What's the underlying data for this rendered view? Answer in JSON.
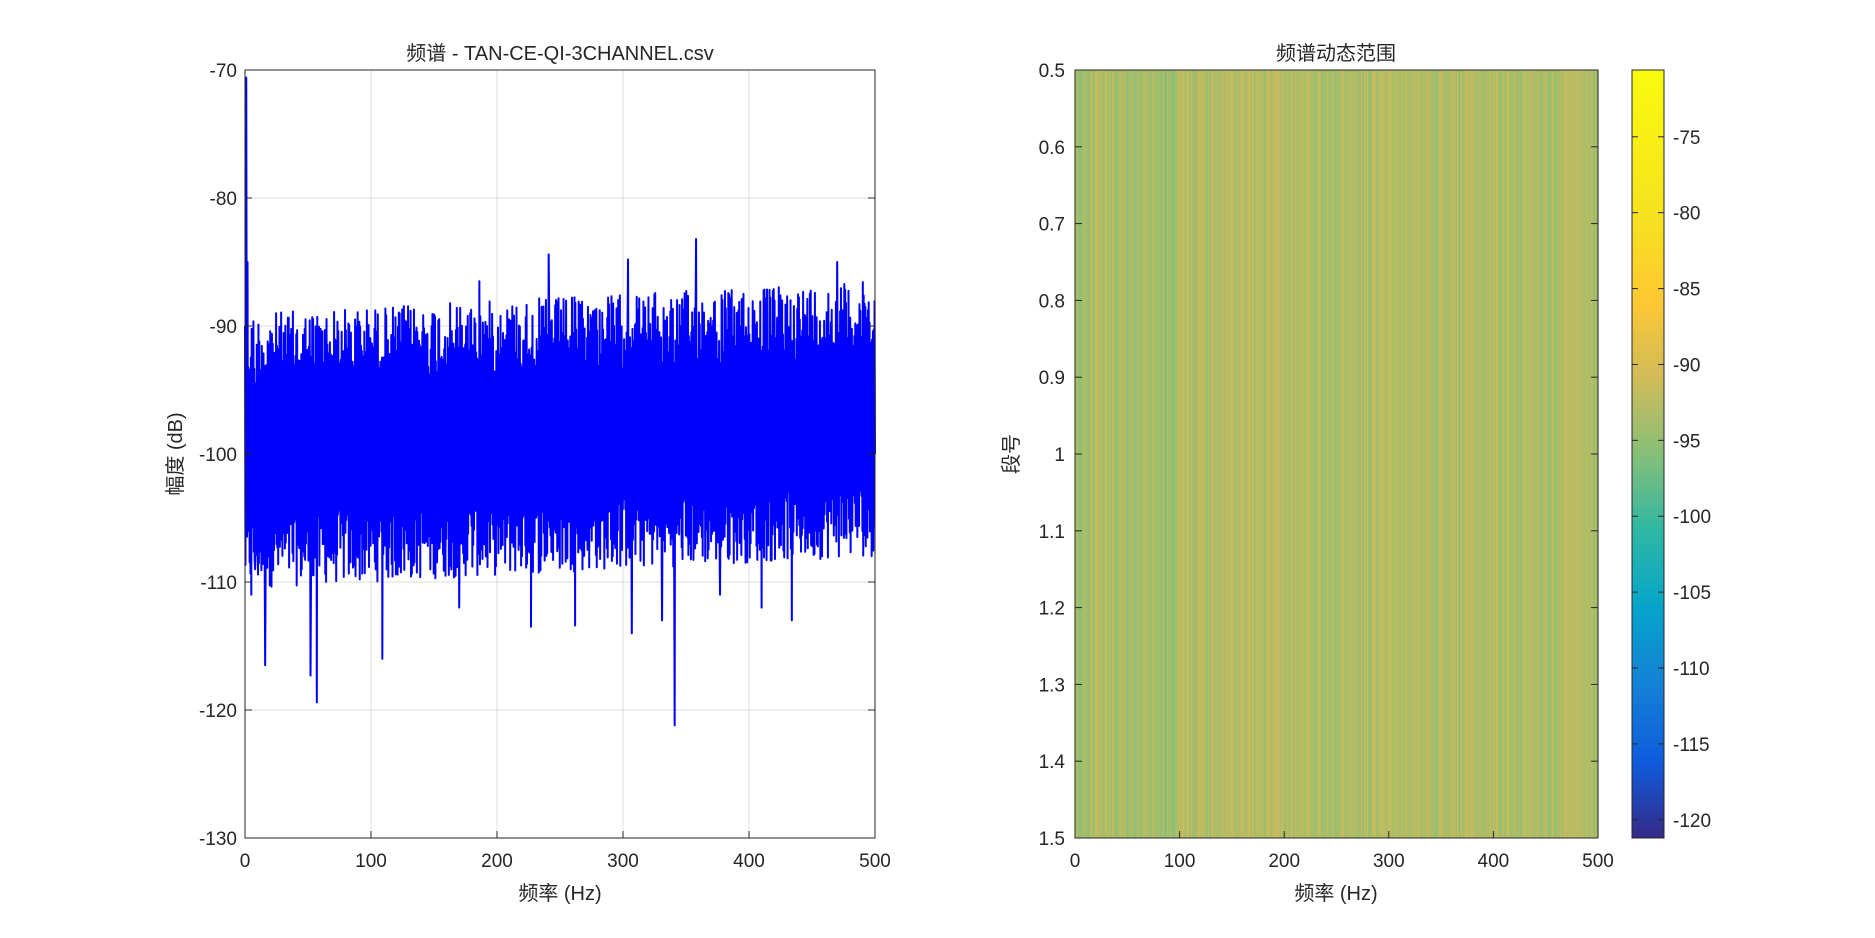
{
  "chart_data": [
    {
      "type": "line",
      "title": "频谱 - TAN-CE-QI-3CHANNEL.csv",
      "xlabel": "频率 (Hz)",
      "ylabel": "幅度 (dB)",
      "xlim": [
        0,
        500
      ],
      "ylim": [
        -130,
        -70
      ],
      "xticks": [
        "0",
        "100",
        "200",
        "300",
        "400",
        "500"
      ],
      "yticks": [
        "-70",
        "-80",
        "-90",
        "-100",
        "-110",
        "-120",
        "-130"
      ],
      "grid": true,
      "line_color": "#0000ff",
      "series": [
        {
          "x": [
            0,
            1,
            2,
            3,
            5,
            8,
            16,
            52,
            57,
            109,
            170,
            227,
            262,
            307,
            331,
            341,
            358,
            377,
            410,
            434,
            500
          ],
          "values": [
            -90,
            -70.6,
            -85,
            -106,
            -111,
            -109,
            -116.5,
            -117.3,
            -119.4,
            -116,
            -112,
            -113.5,
            -113.4,
            -114,
            -113,
            -121.2,
            -112,
            -111,
            -112,
            -113,
            -100
          ],
          "range_low": -108,
          "range_high": -89,
          "peak_high": [
            {
              "x": 186,
              "y": -86.5
            },
            {
              "x": 241,
              "y": -84.4
            },
            {
              "x": 304,
              "y": -84.8
            },
            {
              "x": 358,
              "y": -83.2
            },
            {
              "x": 470,
              "y": -85
            }
          ]
        }
      ]
    },
    {
      "type": "heatmap",
      "title": "频谱动态范围",
      "xlabel": "频率 (Hz)",
      "ylabel": "段号",
      "xlim": [
        0,
        500
      ],
      "ylim": [
        0.5,
        1.5
      ],
      "xticks": [
        "0",
        "100",
        "200",
        "300",
        "400",
        "500"
      ],
      "yticks": [
        "0.5",
        "0.6",
        "0.7",
        "0.8",
        "0.9",
        "1",
        "1.1",
        "1.2",
        "1.3",
        "1.4",
        "1.5"
      ],
      "rows": 1,
      "value_range": [
        -95,
        -91
      ],
      "colorbar": {
        "clim": [
          -121.2,
          -70.6
        ],
        "ticks": [
          "-75",
          "-80",
          "-85",
          "-90",
          "-95",
          "-100",
          "-105",
          "-110",
          "-115",
          "-120"
        ],
        "colormap": "parula"
      }
    }
  ]
}
